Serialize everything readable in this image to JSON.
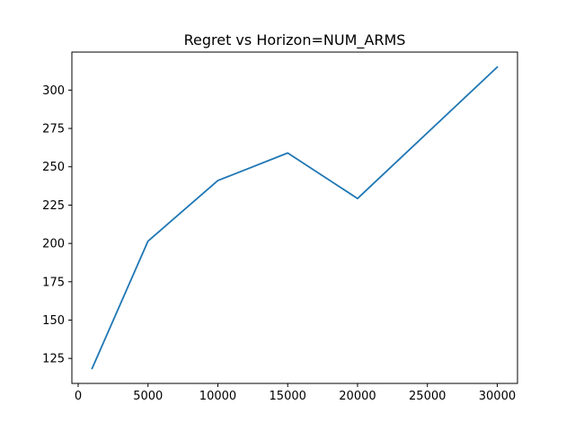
{
  "chart_data": {
    "type": "line",
    "title": "Regret vs Horizon=NUM_ARMS",
    "xlabel": "",
    "ylabel": "",
    "x": [
      1000,
      5000,
      10000,
      15000,
      20000,
      30000
    ],
    "series": [
      {
        "values": [
          118.5,
          201.5,
          241,
          259,
          229.3,
          315
        ],
        "color": "#1f77b4"
      }
    ],
    "xlim": [
      -450,
      31450
    ],
    "ylim": [
      108.7,
      324.8
    ],
    "xticks": [
      0,
      5000,
      10000,
      15000,
      20000,
      25000,
      30000
    ],
    "yticks": [
      125,
      150,
      175,
      200,
      225,
      250,
      275,
      300
    ],
    "grid": false,
    "legend": "none"
  }
}
